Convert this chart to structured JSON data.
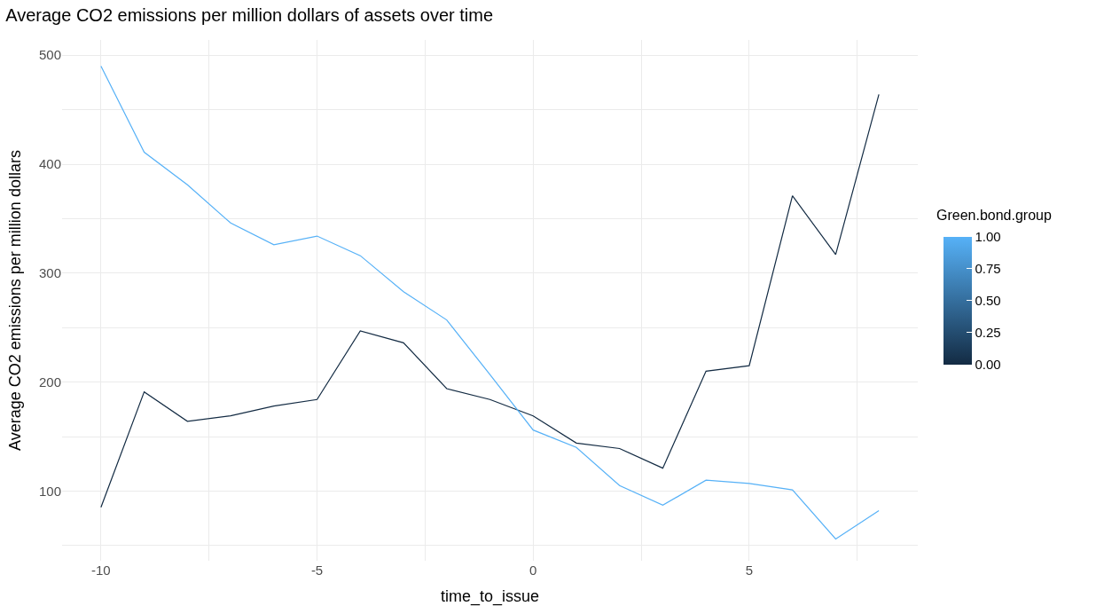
{
  "chart_data": {
    "type": "line",
    "title": "Average CO2 emissions per million dollars of assets over time",
    "xlabel": "time_to_issue",
    "ylabel": "Average CO2 emissions per million dollars",
    "legend_title": "Green.bond.group",
    "x": [
      -10,
      -9,
      -8,
      -7,
      -6,
      -5,
      -4,
      -3,
      -2,
      -1,
      0,
      1,
      2,
      3,
      4,
      5,
      6,
      7,
      8
    ],
    "series": [
      {
        "color": "#132b43",
        "values": [
          85,
          191,
          164,
          169,
          178,
          184,
          247,
          236,
          194,
          184,
          169,
          144,
          139,
          121,
          210,
          215,
          371,
          317,
          464
        ]
      },
      {
        "color": "#56b1f7",
        "values": [
          490,
          411,
          381,
          346,
          326,
          334,
          316,
          283,
          257,
          207,
          156,
          140,
          105,
          87,
          110,
          107,
          101,
          56,
          82
        ]
      }
    ],
    "xlim": [
      -10.9,
      8.9
    ],
    "ylim": [
      36,
      514
    ],
    "xticks": [
      -10,
      {
        "value": -7.5,
        "label": null
      },
      -5,
      {
        "value": -2.5,
        "label": null
      },
      0,
      {
        "value": 2.5,
        "label": null
      },
      5,
      {
        "value": 7.5,
        "label": null
      }
    ],
    "yticks": [
      {
        "value": 50,
        "label": null
      },
      100,
      {
        "value": 150,
        "label": null
      },
      200,
      {
        "value": 250,
        "label": null
      },
      300,
      {
        "value": 350,
        "label": null
      },
      400,
      {
        "value": 450,
        "label": null
      },
      500
    ],
    "clim": [
      0,
      1
    ],
    "cticks": [
      {
        "value": 0,
        "label": "0.00"
      },
      {
        "value": 0.25,
        "label": "0.25"
      },
      {
        "value": 0.5,
        "label": "0.50"
      },
      {
        "value": 0.75,
        "label": "0.75"
      },
      {
        "value": 1,
        "label": "1.00"
      }
    ],
    "grid": true,
    "marker": "none",
    "line_style": "solid"
  }
}
